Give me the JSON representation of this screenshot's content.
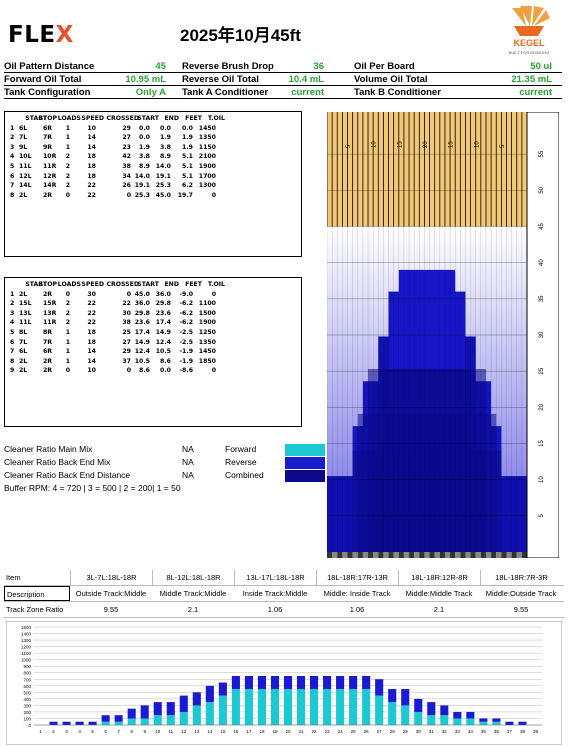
{
  "header": {
    "logo_main": "FLE",
    "logo_x": "X",
    "title": "2025年10月45ft",
    "brand": "KEGEL",
    "brand_sub": "BUILT FOR BOWLING"
  },
  "info": [
    [
      {
        "l": "Oil Pattern Distance",
        "v": "45"
      },
      {
        "l": "Reverse Brush Drop",
        "v": "36"
      },
      {
        "l": "Oil Per Board",
        "v": "50 ul"
      }
    ],
    [
      {
        "l": "Forward Oil Total",
        "v": "10.95 mL"
      },
      {
        "l": "Reverse Oil Total",
        "v": "10.4 mL"
      },
      {
        "l": "Volume Oil Total",
        "v": "21.35 mL"
      }
    ],
    [
      {
        "l": "Tank Configuration",
        "v": "Only A"
      },
      {
        "l": "Tank A Conditioner",
        "v": "current"
      },
      {
        "l": "Tank B Conditioner",
        "v": "current"
      }
    ]
  ],
  "forward_table": {
    "headers": [
      "START",
      "STOP",
      "LOADS",
      "SPEED",
      "CROSSED",
      "START",
      "END",
      "FEET",
      "T.OIL"
    ],
    "rows": [
      [
        "1",
        "6L",
        "6R",
        "1",
        "10",
        "29",
        "0.0",
        "0.0",
        "0.0",
        "1450"
      ],
      [
        "2",
        "7L",
        "7R",
        "1",
        "14",
        "27",
        "0.0",
        "1.9",
        "1.9",
        "1350"
      ],
      [
        "3",
        "9L",
        "9R",
        "1",
        "14",
        "23",
        "1.9",
        "3.8",
        "1.9",
        "1150"
      ],
      [
        "4",
        "10L",
        "10R",
        "2",
        "18",
        "42",
        "3.8",
        "8.9",
        "5.1",
        "2100"
      ],
      [
        "5",
        "11L",
        "11R",
        "2",
        "18",
        "38",
        "8.9",
        "14.0",
        "5.1",
        "1900"
      ],
      [
        "6",
        "12L",
        "12R",
        "2",
        "18",
        "34",
        "14.0",
        "19.1",
        "5.1",
        "1700"
      ],
      [
        "7",
        "14L",
        "14R",
        "2",
        "22",
        "26",
        "19.1",
        "25.3",
        "6.2",
        "1300"
      ],
      [
        "8",
        "2L",
        "2R",
        "0",
        "22",
        "0",
        "25.3",
        "45.0",
        "19.7",
        "0"
      ]
    ]
  },
  "reverse_table": {
    "headers": [
      "START",
      "STOP",
      "LOADS",
      "SPEED",
      "CROSSED",
      "START",
      "END",
      "FEET",
      "T.OIL"
    ],
    "rows": [
      [
        "1",
        "2L",
        "2R",
        "0",
        "30",
        "0",
        "45.0",
        "36.0",
        "-9.0",
        "0"
      ],
      [
        "2",
        "15L",
        "15R",
        "2",
        "22",
        "22",
        "36.0",
        "29.8",
        "-6.2",
        "1100"
      ],
      [
        "3",
        "13L",
        "13R",
        "2",
        "22",
        "30",
        "29.8",
        "23.6",
        "-6.2",
        "1500"
      ],
      [
        "4",
        "11L",
        "11R",
        "2",
        "22",
        "38",
        "23.6",
        "17.4",
        "-6.2",
        "1900"
      ],
      [
        "5",
        "8L",
        "8R",
        "1",
        "18",
        "25",
        "17.4",
        "14.9",
        "-2.5",
        "1250"
      ],
      [
        "6",
        "7L",
        "7R",
        "1",
        "18",
        "27",
        "14.9",
        "12.4",
        "-2.5",
        "1350"
      ],
      [
        "7",
        "6L",
        "6R",
        "1",
        "14",
        "29",
        "12.4",
        "10.5",
        "-1.9",
        "1450"
      ],
      [
        "8",
        "2L",
        "2R",
        "1",
        "14",
        "37",
        "10.5",
        "8.6",
        "-1.9",
        "1850"
      ],
      [
        "9",
        "2L",
        "2R",
        "0",
        "10",
        "0",
        "8.6",
        "0.0",
        "-8.6",
        "0"
      ]
    ]
  },
  "cleaner": [
    {
      "label": "Cleaner Ratio Main Mix",
      "value": "NA",
      "legend": "Forward",
      "color": "#1cc8d2"
    },
    {
      "label": "Cleaner Ratio Back End Mix",
      "value": "NA",
      "legend": "Reverse",
      "color": "#1a1ad0"
    },
    {
      "label": "Cleaner Ratio Back End Distance",
      "value": "NA",
      "legend": "Combined",
      "color": "#0a0a8a"
    }
  ],
  "buffer": "Buffer RPM: 4 = 720 | 3 = 500 | 2 = 200| 1 = 50",
  "lane": {
    "top_labels": [
      "5",
      "10",
      "15",
      "20",
      "15",
      "10",
      "5"
    ],
    "side_labels": [
      "55",
      "50",
      "45",
      "40",
      "35",
      "30",
      "25",
      "20",
      "15",
      "10",
      "5"
    ]
  },
  "ratio_table": {
    "item_label": "Item",
    "desc_label": "Description",
    "ratio_label": "Track Zone Ratio",
    "columns": [
      {
        "item": "3L-7L:18L-18R",
        "desc": "Outside Track:Middle",
        "ratio": "9.55"
      },
      {
        "item": "8L-12L:18L-18R",
        "desc": "Middle Track:Middle",
        "ratio": "2.1"
      },
      {
        "item": "13L-17L:18L-18R",
        "desc": "Inside Track:Middle",
        "ratio": "1.06"
      },
      {
        "item": "18L-18R:17R-13R",
        "desc": "Middle: Inside Track",
        "ratio": "1.06"
      },
      {
        "item": "18L-18R:12R-8R",
        "desc": "Middle:Middle Track",
        "ratio": "2.1"
      },
      {
        "item": "18L-18R:7R-3R",
        "desc": "Middle:Outside Track",
        "ratio": "9.55"
      }
    ]
  },
  "chart_data": {
    "type": "bar",
    "ylim": [
      0,
      1500
    ],
    "yticks": [
      0,
      100,
      200,
      300,
      400,
      500,
      600,
      700,
      800,
      900,
      1000,
      1100,
      1200,
      1300,
      1400,
      1500
    ],
    "categories": [
      "1",
      "2",
      "3",
      "4",
      "5",
      "6",
      "7",
      "8",
      "9",
      "10",
      "11",
      "12",
      "13",
      "14",
      "15",
      "16",
      "17",
      "18",
      "19",
      "20",
      "21",
      "22",
      "23",
      "24",
      "25",
      "26",
      "27",
      "28",
      "29",
      "30",
      "31",
      "32",
      "33",
      "34",
      "35",
      "36",
      "37",
      "38",
      "39"
    ],
    "series": [
      {
        "color": "#1cc8d2",
        "values": [
          0,
          0,
          0,
          0,
          0,
          50,
          50,
          100,
          100,
          150,
          150,
          200,
          300,
          350,
          450,
          550,
          550,
          550,
          550,
          550,
          550,
          550,
          550,
          550,
          550,
          550,
          450,
          350,
          300,
          200,
          150,
          150,
          100,
          100,
          50,
          50,
          0,
          0,
          0
        ]
      },
      {
        "color": "#1a1ad0",
        "values": [
          0,
          50,
          50,
          50,
          50,
          100,
          100,
          150,
          200,
          200,
          200,
          250,
          200,
          250,
          200,
          200,
          200,
          200,
          200,
          200,
          200,
          200,
          200,
          200,
          200,
          200,
          250,
          200,
          250,
          200,
          200,
          150,
          100,
          100,
          50,
          50,
          50,
          50,
          0
        ]
      }
    ],
    "grid": true
  }
}
